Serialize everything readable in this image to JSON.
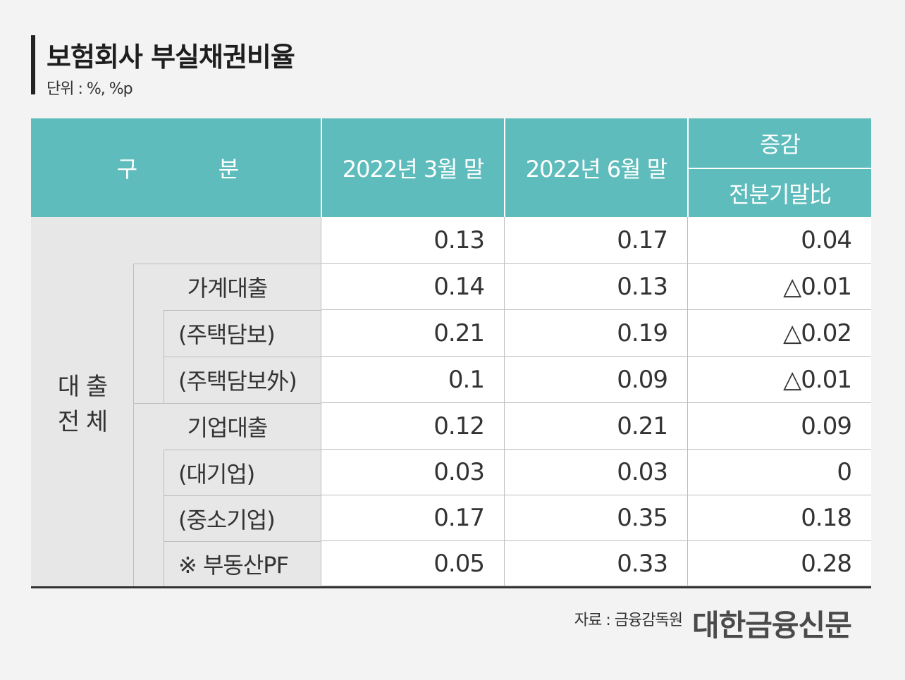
{
  "header": {
    "title": "보험회사 부실채권비율",
    "unit": "단위 : %, %p"
  },
  "table_header": {
    "category_a": "구",
    "category_b": "분",
    "col1": "2022년 3월 말",
    "col2": "2022년 6월 말",
    "col3_top": "증감",
    "col3_bottom": "전분기말比"
  },
  "group_label_line1": "대 출",
  "group_label_line2": "전 체",
  "rows": [
    {
      "label": "",
      "mar": "0.13",
      "jun": "0.17",
      "chg": "0.04"
    },
    {
      "label": "가계대출",
      "mar": "0.14",
      "jun": "0.13",
      "chg": "△0.01"
    },
    {
      "label": "(주택담보)",
      "mar": "0.21",
      "jun": "0.19",
      "chg": "△0.02"
    },
    {
      "label": "(주택담보外)",
      "mar": "0.1",
      "jun": "0.09",
      "chg": "△0.01"
    },
    {
      "label": "기업대출",
      "mar": "0.12",
      "jun": "0.21",
      "chg": "0.09"
    },
    {
      "label": "(대기업)",
      "mar": "0.03",
      "jun": "0.03",
      "chg": "0"
    },
    {
      "label": "(중소기업)",
      "mar": "0.17",
      "jun": "0.35",
      "chg": "0.18"
    },
    {
      "label": "※ 부동산PF",
      "mar": "0.05",
      "jun": "0.33",
      "chg": "0.28"
    }
  ],
  "footer": {
    "source": "자료 : 금융감독원",
    "logo": "대한금융신문"
  },
  "colors": {
    "header_bg": "#5fbcbc",
    "label_bg": "#e7e7e7",
    "page_bg": "#f3f3f3"
  },
  "chart_data": {
    "type": "table",
    "title": "보험회사 부실채권비율",
    "unit": "단위 : %, %p",
    "columns": [
      "구분",
      "2022년 3월 말",
      "2022년 6월 말",
      "증감 전분기말比"
    ],
    "rows": [
      [
        "대출 전체",
        0.13,
        0.17,
        0.04
      ],
      [
        "가계대출",
        0.14,
        0.13,
        -0.01
      ],
      [
        "(주택담보)",
        0.21,
        0.19,
        -0.02
      ],
      [
        "(주택담보外)",
        0.1,
        0.09,
        -0.01
      ],
      [
        "기업대출",
        0.12,
        0.21,
        0.09
      ],
      [
        "(대기업)",
        0.03,
        0.03,
        0
      ],
      [
        "(중소기업)",
        0.17,
        0.35,
        0.18
      ],
      [
        "※ 부동산PF",
        0.05,
        0.33,
        0.28
      ]
    ]
  }
}
